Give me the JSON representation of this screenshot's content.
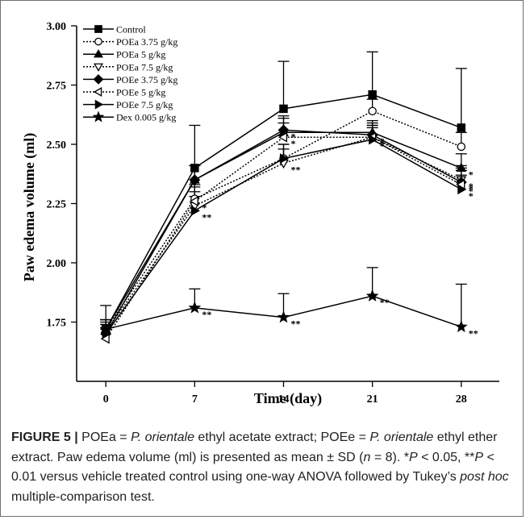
{
  "chart_data": {
    "type": "line",
    "xlabel": "Time (day)",
    "ylabel": "Paw edema volume (ml)",
    "x": [
      0,
      7,
      14,
      21,
      28
    ],
    "xticks": [
      "0",
      "7",
      "14",
      "21",
      "28"
    ],
    "xlim": [
      -2.3,
      31
    ],
    "yticks": [
      "1.75",
      "2.00",
      "2.25",
      "2.50",
      "2.75",
      "3.00"
    ],
    "ylim": [
      1.5,
      3.0
    ],
    "legend_position": "top-left",
    "series": [
      {
        "name": "Control",
        "marker": "square",
        "open": false,
        "dash": false,
        "values": [
          1.72,
          2.4,
          2.65,
          2.71,
          2.57
        ],
        "err": [
          0.1,
          0.18,
          0.2,
          0.18,
          0.25
        ],
        "sig": [
          "",
          "",
          "",
          "",
          ""
        ]
      },
      {
        "name": "POEa 3.75 g/kg",
        "marker": "circle",
        "open": true,
        "dash": true,
        "values": [
          1.72,
          2.27,
          2.44,
          2.64,
          2.49
        ],
        "err": [
          0.04,
          0.06,
          0.06,
          0.05,
          0.06
        ],
        "sig": [
          "",
          "",
          "",
          "",
          ""
        ]
      },
      {
        "name": "POEa 5 g/kg",
        "marker": "triangle-up",
        "open": false,
        "dash": false,
        "values": [
          1.72,
          2.35,
          2.55,
          2.55,
          2.4
        ],
        "err": [
          0.04,
          0.06,
          0.06,
          0.05,
          0.06
        ],
        "sig": [
          "",
          "",
          "",
          "",
          "*"
        ]
      },
      {
        "name": "POEa 7.5 g/kg",
        "marker": "triangle-down",
        "open": true,
        "dash": true,
        "values": [
          1.71,
          2.24,
          2.42,
          2.53,
          2.35
        ],
        "err": [
          0.04,
          0.06,
          0.06,
          0.05,
          0.06
        ],
        "sig": [
          "",
          "",
          "**",
          "*",
          "*"
        ]
      },
      {
        "name": "POEe 3.75 g/kg",
        "marker": "diamond",
        "open": false,
        "dash": false,
        "values": [
          1.7,
          2.35,
          2.56,
          2.54,
          2.34
        ],
        "err": [
          0.04,
          0.06,
          0.06,
          0.05,
          0.06
        ],
        "sig": [
          "",
          "",
          "*",
          "*",
          "*"
        ]
      },
      {
        "name": "POEe 5 g/kg",
        "marker": "triangle-left",
        "open": true,
        "dash": true,
        "values": [
          1.68,
          2.26,
          2.53,
          2.53,
          2.33
        ],
        "err": [
          0.04,
          0.06,
          0.06,
          0.05,
          0.06
        ],
        "sig": [
          "",
          "*",
          "*",
          "*",
          "*"
        ]
      },
      {
        "name": "POEe 7.5 g/kg",
        "marker": "triangle-right",
        "open": false,
        "dash": false,
        "values": [
          1.7,
          2.22,
          2.44,
          2.52,
          2.31
        ],
        "err": [
          0.04,
          0.06,
          0.06,
          0.05,
          0.06
        ],
        "sig": [
          "",
          "**",
          "",
          "*",
          "*"
        ]
      },
      {
        "name": "Dex 0.005 g/kg",
        "marker": "star",
        "open": false,
        "dash": false,
        "values": [
          1.72,
          1.81,
          1.77,
          1.86,
          1.73
        ],
        "err": [
          0.04,
          0.08,
          0.1,
          0.12,
          0.18
        ],
        "sig": [
          "",
          "**",
          "**",
          "**",
          "**"
        ]
      }
    ]
  },
  "caption": {
    "label": "FIGURE 5 |",
    "part1": " POEa = ",
    "species1": "P. orientale",
    "part2": " ethyl acetate extract; POEe = ",
    "species2": "P. orientale",
    "part3": " ethyl ether extract. Paw edema volume (ml) is presented as mean ± SD (",
    "n_italic": "n",
    "part4": " = 8). *",
    "p1": "P",
    "part5": " < 0.05, **",
    "p2": "P",
    "part6": " < 0.01 versus vehicle treated control using one-way ANOVA followed by Tukey’s ",
    "posthoc": "post hoc",
    "part7": " multiple-comparison test."
  }
}
